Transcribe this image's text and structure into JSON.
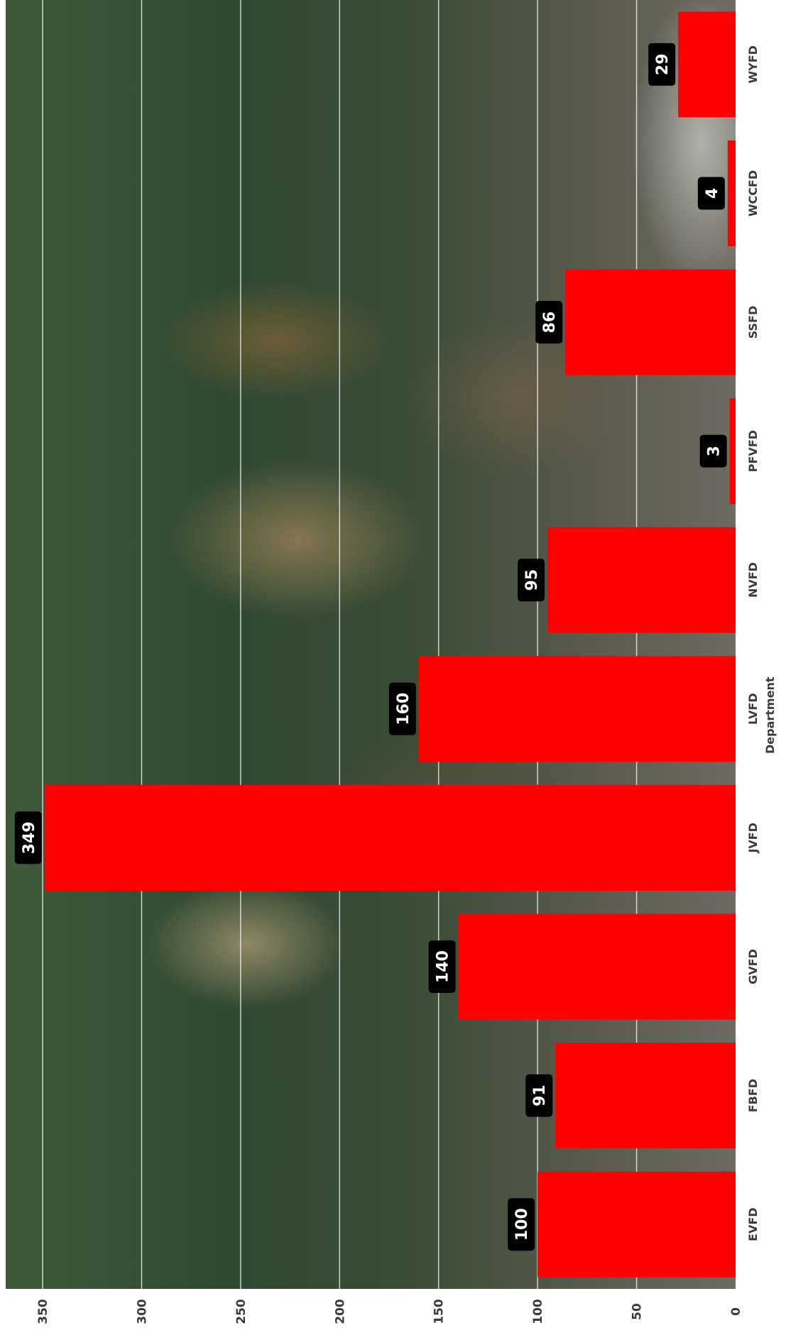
{
  "chart_data": {
    "type": "bar",
    "orientation": "rotated",
    "xlabel": "Department",
    "categories": [
      "EVFD",
      "FBFD",
      "GVFD",
      "JVFD",
      "LVFD",
      "NVFD",
      "PFVFD",
      "SSFD",
      "WCCFD",
      "WYFD"
    ],
    "values": [
      100,
      91,
      140,
      349,
      160,
      95,
      3,
      86,
      4,
      29
    ],
    "ylim": [
      0,
      350
    ],
    "yticks": [
      0,
      50,
      100,
      150,
      200,
      250,
      300,
      350
    ],
    "grid": true,
    "bar_color": "#ff0000",
    "data_label_background": "#000000",
    "data_label_color": "#ffffff"
  }
}
